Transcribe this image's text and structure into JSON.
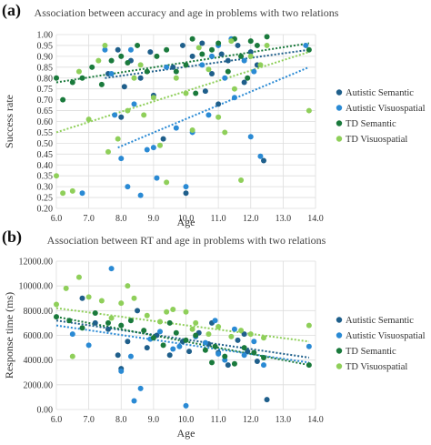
{
  "chart_data": [
    {
      "panel_letter": "(a)",
      "type": "scatter",
      "title": "Association between accuracy and age in problems with two relations",
      "xlabel": "Age",
      "ylabel": "Success rate",
      "xlim": [
        6.0,
        14.0
      ],
      "ylim": [
        0.2,
        1.0
      ],
      "x_ticks": [
        "6.0",
        "7.0",
        "8.0",
        "9.0",
        "10.0",
        "11.0",
        "12.0",
        "13.0",
        "14.0"
      ],
      "y_ticks": [
        "0.20",
        "0.25",
        "0.30",
        "0.35",
        "0.40",
        "0.45",
        "0.50",
        "0.55",
        "0.60",
        "0.65",
        "0.70",
        "0.75",
        "0.80",
        "0.85",
        "0.90",
        "0.95",
        "1.00"
      ],
      "grid": true,
      "legend_position": "right",
      "series": [
        {
          "name": "Autistic Semantic",
          "color": "#1f5f8b",
          "trendline": [
            [
              7.5,
              0.8
            ],
            [
              13.8,
              0.93
            ]
          ],
          "points": [
            [
              7.6,
              0.82
            ],
            [
              7.9,
              0.93
            ],
            [
              8.1,
              0.76
            ],
            [
              8.3,
              0.88
            ],
            [
              8.6,
              0.8
            ],
            [
              8.9,
              0.92
            ],
            [
              9.0,
              0.72
            ],
            [
              9.3,
              0.52
            ],
            [
              9.6,
              0.85
            ],
            [
              9.9,
              0.95
            ],
            [
              10.0,
              0.27
            ],
            [
              10.2,
              0.9
            ],
            [
              10.5,
              0.96
            ],
            [
              10.8,
              0.82
            ],
            [
              11.1,
              0.91
            ],
            [
              11.3,
              0.88
            ],
            [
              11.6,
              0.95
            ],
            [
              11.8,
              0.78
            ],
            [
              12.2,
              0.86
            ],
            [
              12.4,
              0.42
            ],
            [
              11.0,
              0.68
            ],
            [
              10.6,
              0.74
            ],
            [
              8.0,
              0.62
            ],
            [
              12.0,
              0.92
            ]
          ]
        },
        {
          "name": "Autistic Visuospatial",
          "color": "#2a8ad4",
          "trendline": [
            [
              7.9,
              0.48
            ],
            [
              13.8,
              0.85
            ]
          ],
          "points": [
            [
              6.8,
              0.27
            ],
            [
              7.5,
              0.93
            ],
            [
              7.8,
              0.63
            ],
            [
              8.0,
              0.43
            ],
            [
              8.2,
              0.3
            ],
            [
              8.4,
              0.68
            ],
            [
              8.6,
              0.26
            ],
            [
              8.8,
              0.47
            ],
            [
              9.1,
              0.34
            ],
            [
              9.4,
              0.85
            ],
            [
              9.7,
              0.57
            ],
            [
              10.0,
              0.3
            ],
            [
              10.2,
              0.55
            ],
            [
              10.5,
              0.86
            ],
            [
              10.8,
              0.9
            ],
            [
              11.0,
              0.95
            ],
            [
              11.2,
              0.8
            ],
            [
              11.5,
              0.71
            ],
            [
              11.8,
              0.88
            ],
            [
              12.0,
              0.53
            ],
            [
              12.3,
              0.44
            ],
            [
              13.7,
              0.95
            ],
            [
              8.3,
              0.93
            ],
            [
              10.7,
              0.63
            ],
            [
              11.4,
              0.98
            ],
            [
              12.1,
              0.83
            ],
            [
              9.0,
              0.48
            ],
            [
              7.7,
              0.82
            ]
          ]
        },
        {
          "name": "TD Semantic",
          "color": "#1a7a3c",
          "trendline": [
            [
              6.0,
              0.78
            ],
            [
              13.8,
              0.96
            ]
          ],
          "points": [
            [
              6.0,
              0.8
            ],
            [
              6.2,
              0.7
            ],
            [
              6.5,
              0.78
            ],
            [
              6.8,
              0.8
            ],
            [
              7.1,
              0.85
            ],
            [
              7.4,
              0.77
            ],
            [
              7.7,
              0.88
            ],
            [
              8.0,
              0.9
            ],
            [
              8.2,
              0.87
            ],
            [
              8.5,
              0.95
            ],
            [
              8.8,
              0.83
            ],
            [
              9.1,
              0.9
            ],
            [
              9.4,
              0.93
            ],
            [
              9.7,
              0.83
            ],
            [
              10.0,
              0.86
            ],
            [
              10.2,
              0.98
            ],
            [
              10.5,
              0.91
            ],
            [
              10.8,
              0.93
            ],
            [
              11.0,
              0.96
            ],
            [
              11.3,
              0.83
            ],
            [
              11.5,
              0.98
            ],
            [
              11.7,
              0.9
            ],
            [
              12.0,
              0.97
            ],
            [
              12.2,
              0.95
            ],
            [
              12.5,
              0.99
            ],
            [
              13.8,
              0.93
            ],
            [
              10.3,
              0.73
            ],
            [
              11.9,
              0.8
            ]
          ]
        },
        {
          "name": "TD Visuospatial",
          "color": "#8fcf5a",
          "trendline": [
            [
              6.0,
              0.55
            ],
            [
              13.8,
              0.92
            ]
          ],
          "points": [
            [
              6.0,
              0.35
            ],
            [
              6.2,
              0.27
            ],
            [
              6.5,
              0.28
            ],
            [
              6.7,
              0.83
            ],
            [
              7.0,
              0.61
            ],
            [
              7.3,
              0.88
            ],
            [
              7.6,
              0.46
            ],
            [
              7.9,
              0.52
            ],
            [
              8.2,
              0.65
            ],
            [
              8.4,
              0.8
            ],
            [
              8.7,
              0.63
            ],
            [
              9.0,
              0.71
            ],
            [
              9.2,
              0.49
            ],
            [
              9.4,
              0.32
            ],
            [
              9.7,
              0.8
            ],
            [
              10.0,
              0.73
            ],
            [
              10.2,
              0.56
            ],
            [
              10.4,
              0.94
            ],
            [
              10.7,
              0.84
            ],
            [
              11.0,
              0.62
            ],
            [
              11.2,
              0.55
            ],
            [
              11.5,
              0.75
            ],
            [
              11.7,
              0.33
            ],
            [
              12.0,
              0.9
            ],
            [
              12.5,
              0.95
            ],
            [
              13.8,
              0.65
            ],
            [
              7.5,
              0.95
            ],
            [
              8.6,
              0.86
            ],
            [
              12.3,
              0.86
            ],
            [
              11.4,
              0.97
            ]
          ]
        }
      ]
    },
    {
      "panel_letter": "(b)",
      "type": "scatter",
      "title": "Association between RT and age in problems with two relations",
      "xlabel": "Age",
      "ylabel": "Response time (ms)",
      "xlim": [
        6.0,
        14.0
      ],
      "ylim": [
        0,
        12000
      ],
      "x_ticks": [
        "6.0",
        "7.0",
        "8.0",
        "9.0",
        "10.0",
        "11.0",
        "12.0",
        "13.0",
        "14.0"
      ],
      "y_ticks": [
        "0.00",
        "2000.00",
        "4000.00",
        "6000.00",
        "8000.00",
        "10000.00",
        "12000.00"
      ],
      "grid": true,
      "legend_position": "right",
      "series": [
        {
          "name": "Autistic Semantic",
          "color": "#1f5f8b",
          "trendline": [
            [
              6.0,
              7200
            ],
            [
              13.8,
              4200
            ]
          ],
          "points": [
            [
              6.8,
              9000
            ],
            [
              7.2,
              7000
            ],
            [
              7.6,
              6500
            ],
            [
              7.9,
              4400
            ],
            [
              8.2,
              5500
            ],
            [
              8.5,
              8000
            ],
            [
              8.8,
              5000
            ],
            [
              9.1,
              6000
            ],
            [
              9.5,
              4400
            ],
            [
              9.9,
              5500
            ],
            [
              10.1,
              4700
            ],
            [
              10.4,
              6200
            ],
            [
              10.7,
              5300
            ],
            [
              11.0,
              4600
            ],
            [
              11.3,
              3600
            ],
            [
              11.6,
              5600
            ],
            [
              11.9,
              4700
            ],
            [
              12.2,
              3900
            ],
            [
              12.5,
              800
            ],
            [
              8.0,
              3300
            ],
            [
              10.8,
              7000
            ],
            [
              11.8,
              6100
            ]
          ]
        },
        {
          "name": "Autistic Visuospatial",
          "color": "#2a8ad4",
          "trendline": [
            [
              6.0,
              6800
            ],
            [
              13.8,
              3800
            ]
          ],
          "points": [
            [
              6.5,
              6100
            ],
            [
              7.0,
              5200
            ],
            [
              7.7,
              11400
            ],
            [
              8.0,
              3100
            ],
            [
              8.3,
              4300
            ],
            [
              8.6,
              1700
            ],
            [
              8.9,
              5700
            ],
            [
              9.2,
              6300
            ],
            [
              9.6,
              4900
            ],
            [
              10.0,
              300
            ],
            [
              10.3,
              5900
            ],
            [
              10.6,
              5400
            ],
            [
              10.9,
              7200
            ],
            [
              11.2,
              4000
            ],
            [
              11.5,
              6500
            ],
            [
              11.8,
              4400
            ],
            [
              12.1,
              5500
            ],
            [
              12.4,
              3600
            ],
            [
              13.8,
              5100
            ],
            [
              8.4,
              700
            ],
            [
              11.0,
              4500
            ],
            [
              9.8,
              5100
            ]
          ]
        },
        {
          "name": "TD Semantic",
          "color": "#1a7a3c",
          "trendline": [
            [
              6.0,
              7500
            ],
            [
              13.8,
              3600
            ]
          ],
          "points": [
            [
              6.0,
              7500
            ],
            [
              6.4,
              7200
            ],
            [
              6.8,
              6600
            ],
            [
              7.2,
              7800
            ],
            [
              7.6,
              7000
            ],
            [
              8.0,
              6800
            ],
            [
              8.3,
              7200
            ],
            [
              8.7,
              6400
            ],
            [
              9.0,
              5800
            ],
            [
              9.3,
              5200
            ],
            [
              9.7,
              6200
            ],
            [
              10.0,
              5600
            ],
            [
              10.3,
              6000
            ],
            [
              10.6,
              4800
            ],
            [
              10.9,
              5100
            ],
            [
              11.2,
              4300
            ],
            [
              11.5,
              3700
            ],
            [
              11.8,
              5000
            ],
            [
              12.1,
              4600
            ],
            [
              12.4,
              4200
            ],
            [
              13.8,
              3600
            ],
            [
              9.5,
              7000
            ],
            [
              10.8,
              3800
            ]
          ]
        },
        {
          "name": "TD Visuospatial",
          "color": "#8fcf5a",
          "trendline": [
            [
              6.0,
              8200
            ],
            [
              13.8,
              5500
            ]
          ],
          "points": [
            [
              6.0,
              8500
            ],
            [
              6.3,
              9800
            ],
            [
              6.5,
              4300
            ],
            [
              6.7,
              10700
            ],
            [
              7.0,
              9100
            ],
            [
              7.4,
              8800
            ],
            [
              7.7,
              7400
            ],
            [
              8.0,
              8600
            ],
            [
              8.4,
              9000
            ],
            [
              8.8,
              7600
            ],
            [
              9.2,
              7100
            ],
            [
              9.6,
              8100
            ],
            [
              10.0,
              7900
            ],
            [
              10.3,
              7000
            ],
            [
              10.7,
              6100
            ],
            [
              11.0,
              6700
            ],
            [
              11.4,
              5900
            ],
            [
              11.7,
              6400
            ],
            [
              12.0,
              6100
            ],
            [
              12.4,
              5800
            ],
            [
              13.8,
              6800
            ],
            [
              8.2,
              10000
            ],
            [
              10.2,
              6500
            ],
            [
              9.4,
              7900
            ]
          ]
        }
      ]
    }
  ]
}
